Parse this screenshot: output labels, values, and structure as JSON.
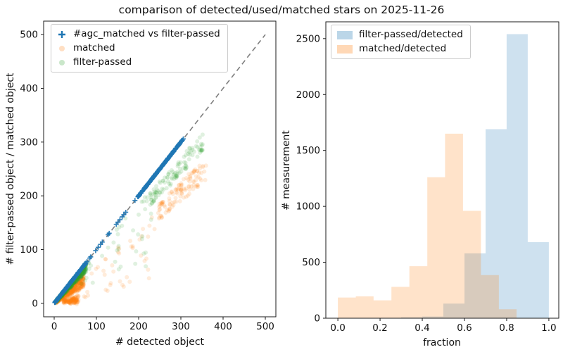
{
  "title": "comparison of detected/used/matched stars on 2025-11-26",
  "colors": {
    "blue": "#1f77b4",
    "orange": "#ff7f0e",
    "green": "#2ca02c",
    "reference_gray": "#7f7f7f",
    "spine": "#1a1a1a",
    "legend_border": "#cccccc"
  },
  "chart_data": [
    {
      "type": "scatter",
      "panel": "left",
      "xlabel": "# detected object",
      "ylabel": "# filter-passed object / matched object",
      "xlim": [
        -25,
        525
      ],
      "ylim": [
        -25,
        525
      ],
      "xticks": [
        0,
        100,
        200,
        300,
        400,
        500
      ],
      "xtick_labels": [
        "0",
        "100",
        "200",
        "300",
        "400",
        "500"
      ],
      "yticks": [
        0,
        100,
        200,
        300,
        400,
        500
      ],
      "ytick_labels": [
        "0",
        "100",
        "200",
        "300",
        "400",
        "500"
      ],
      "grid": false,
      "legend_position": "upper left",
      "legend": [
        {
          "label": "#agc_matched vs filter-passed",
          "marker": "plus",
          "color": "#1f77b4",
          "alpha": 1
        },
        {
          "label": "matched",
          "marker": "dot",
          "color": "#ff7f0e",
          "alpha": 0.25
        },
        {
          "label": "filter-passed",
          "marker": "dot",
          "color": "#2ca02c",
          "alpha": 0.25
        }
      ],
      "reference_line": {
        "x": [
          0,
          500
        ],
        "y": [
          0,
          500
        ],
        "style": "dashed",
        "color": "#7f7f7f"
      },
      "seed": 20251126,
      "series": [
        {
          "name": "matched",
          "marker": "dot",
          "color": "#ff7f0e",
          "alpha": 0.15,
          "clusters": [
            {
              "x_range": [
                4,
                70
              ],
              "y_over_x": [
                0.42,
                0.82
              ],
              "count": 460
            },
            {
              "x_range": [
                22,
                58
              ],
              "y_over_x": [
                0.0,
                0.25
              ],
              "count": 130
            },
            {
              "x_range": [
                80,
                245
              ],
              "y_over_x": [
                0.5,
                0.72
              ],
              "count": 22
            },
            {
              "x_range": [
                245,
                360
              ],
              "y_over_x": [
                0.63,
                0.75
              ],
              "count": 115
            },
            {
              "x_range": [
                60,
                230
              ],
              "y_over_x": [
                0.15,
                0.5
              ],
              "count": 20
            }
          ]
        },
        {
          "name": "filter-passed",
          "marker": "dot",
          "color": "#2ca02c",
          "alpha": 0.15,
          "clusters": [
            {
              "x_range": [
                3,
                76
              ],
              "y_over_x": [
                0.78,
                1.0
              ],
              "count": 500
            },
            {
              "x_range": [
                78,
                235
              ],
              "y_over_x": [
                0.7,
                0.95
              ],
              "count": 22
            },
            {
              "x_range": [
                226,
                352
              ],
              "y_over_x": [
                0.8,
                0.9
              ],
              "count": 115
            },
            {
              "x_range": [
                60,
                230
              ],
              "y_over_x": [
                0.3,
                0.7
              ],
              "count": 18
            }
          ]
        },
        {
          "name": "#agc_matched vs filter-passed",
          "marker": "plus",
          "color": "#1f77b4",
          "alpha": 0.9,
          "relation": "y = x",
          "clusters": [
            {
              "x_range": [
                1,
                75
              ],
              "y_over_x": [
                1.0,
                1.0
              ],
              "count": 170
            },
            {
              "x_range": [
                76,
                197
              ],
              "y_over_x": [
                1.0,
                1.0
              ],
              "count": 16
            },
            {
              "x_range": [
                198,
                306
              ],
              "y_over_x": [
                1.0,
                1.0
              ],
              "count": 210
            }
          ]
        }
      ]
    },
    {
      "type": "histogram",
      "panel": "right",
      "xlabel": "fraction",
      "ylabel": "# measurement",
      "xlim": [
        -0.057,
        1.047
      ],
      "ylim": [
        0,
        2650
      ],
      "xticks": [
        0.0,
        0.2,
        0.4,
        0.6,
        0.8,
        1.0
      ],
      "xtick_labels": [
        "0.0",
        "0.2",
        "0.4",
        "0.6",
        "0.8",
        "1.0"
      ],
      "yticks": [
        0,
        500,
        1000,
        1500,
        2000,
        2500
      ],
      "ytick_labels": [
        "0",
        "500",
        "1000",
        "1500",
        "2000",
        "2500"
      ],
      "grid": false,
      "legend_position": "upper left",
      "legend": [
        {
          "label": "filter-passed/detected",
          "color": "#1f77b4",
          "alpha": 0.3
        },
        {
          "label": "matched/detected",
          "color": "#ff7f0e",
          "alpha": 0.3
        }
      ],
      "series": [
        {
          "name": "filter-passed/detected",
          "color": "#1f77b4",
          "alpha": 0.22,
          "bin_edges": [
            0.3,
            0.4,
            0.5,
            0.6,
            0.7,
            0.8,
            0.9,
            1.0
          ],
          "counts": [
            8,
            15,
            130,
            580,
            1690,
            2540,
            680
          ]
        },
        {
          "name": "matched/detected",
          "color": "#ff7f0e",
          "alpha": 0.22,
          "bin_edges": [
            0.0,
            0.085,
            0.169,
            0.254,
            0.339,
            0.424,
            0.508,
            0.593,
            0.678,
            0.763,
            0.847
          ],
          "counts": [
            185,
            195,
            160,
            280,
            465,
            1260,
            1650,
            960,
            385,
            80
          ]
        }
      ]
    }
  ]
}
